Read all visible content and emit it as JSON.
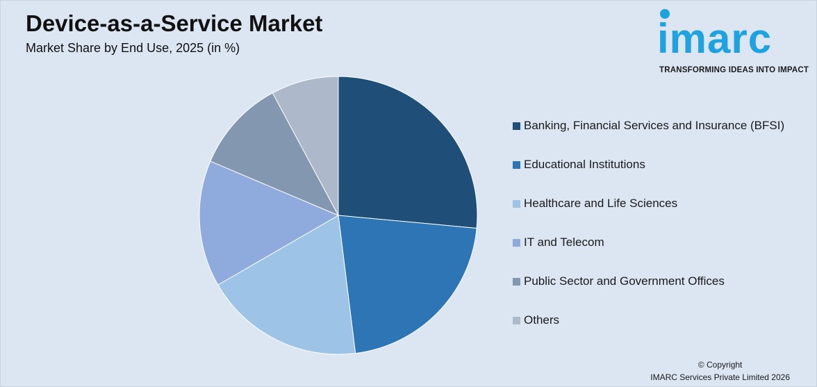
{
  "header": {
    "title": "Device-as-a-Service Market",
    "subtitle": "Market Share by End Use, 2025 (in %)"
  },
  "logo": {
    "wordmark": "imarc",
    "tagline": "TRANSFORMING IDEAS INTO IMPACT",
    "color": "#1fa3e0"
  },
  "chart_data": {
    "type": "pie",
    "title": "Device-as-a-Service Market",
    "subtitle": "Market Share by End Use, 2025 (in %)",
    "legend_position": "right",
    "start_angle_deg": 0,
    "direction": "clockwise",
    "slices": [
      {
        "label": "Banking, Financial Services and Insurance (BFSI)",
        "value": 27,
        "color": "#1f4e79"
      },
      {
        "label": "Educational Institutions",
        "value": 22,
        "color": "#2e75b6"
      },
      {
        "label": "Healthcare and Life Sciences",
        "value": 19,
        "color": "#9dc3e6"
      },
      {
        "label": "IT and Telecom",
        "value": 15,
        "color": "#8faadc"
      },
      {
        "label": "Public Sector and Government Offices",
        "value": 11,
        "color": "#8497b0"
      },
      {
        "label": "Others",
        "value": 8,
        "color": "#adb9ca"
      }
    ]
  },
  "footer": {
    "copyright_line1": "© Copyright",
    "copyright_line2": "IMARC Services Private Limited 2026"
  }
}
